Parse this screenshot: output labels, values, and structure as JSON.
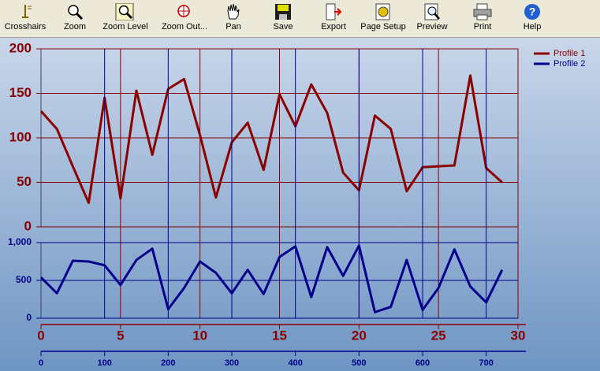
{
  "toolbar": {
    "items": [
      "Crosshairs",
      "Zoom",
      "Zoom Level",
      "Zoom Out...",
      "Pan",
      "Save",
      "Export",
      "Page Setup",
      "Preview",
      "Print",
      "Help"
    ]
  },
  "chart_data": [
    {
      "type": "line",
      "x": [
        0,
        1,
        2,
        3,
        4,
        5,
        6,
        7,
        8,
        9,
        10,
        11,
        12,
        13,
        14,
        15,
        16,
        17,
        18,
        19,
        20,
        21,
        22,
        23,
        24,
        25,
        26,
        27,
        28,
        29
      ],
      "series": [
        {
          "name": "Profile 1",
          "color": "#8b0000",
          "values": [
            130,
            110,
            68,
            27,
            145,
            32,
            153,
            81,
            155,
            166,
            103,
            33,
            95,
            117,
            64,
            149,
            113,
            160,
            128,
            61,
            41,
            125,
            110,
            40,
            67,
            68,
            69,
            170,
            66,
            50
          ]
        }
      ],
      "xlim": [
        0,
        30
      ],
      "xticks": [
        0,
        5,
        10,
        15,
        20,
        25,
        30
      ],
      "ylim": [
        0,
        200
      ],
      "yticks": [
        0,
        50,
        100,
        150,
        200
      ],
      "grid": true
    },
    {
      "type": "line",
      "x": [
        0,
        25,
        50,
        75,
        100,
        125,
        150,
        175,
        200,
        225,
        250,
        275,
        300,
        325,
        350,
        375,
        400,
        425,
        450,
        475,
        500,
        525,
        550,
        575,
        600,
        625,
        650,
        675,
        700,
        725
      ],
      "series": [
        {
          "name": "Profile 2",
          "color": "#00008b",
          "values": [
            540,
            330,
            760,
            750,
            700,
            440,
            770,
            920,
            120,
            400,
            750,
            600,
            330,
            640,
            320,
            810,
            950,
            280,
            940,
            560,
            960,
            80,
            150,
            770,
            110,
            400,
            910,
            420,
            210,
            640
          ]
        }
      ],
      "xlim": [
        0,
        750
      ],
      "xticks": [
        0,
        100,
        200,
        300,
        400,
        500,
        600,
        700
      ],
      "ylim": [
        0,
        1000
      ],
      "yticks": [
        0,
        500,
        {
          "value": 1000,
          "label": "1,000"
        }
      ],
      "grid": true
    }
  ]
}
